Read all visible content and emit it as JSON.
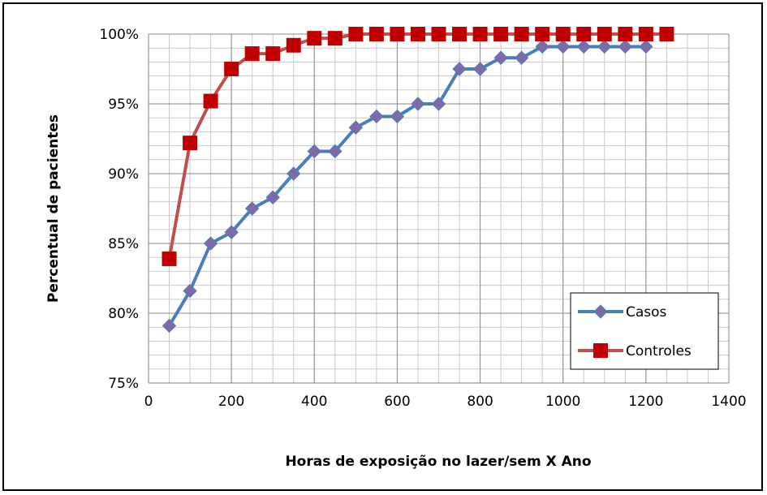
{
  "chart_data": {
    "type": "line",
    "xlabel": "Horas de exposição no lazer/sem X Ano",
    "ylabel": "Percentual de pacientes",
    "xlim": [
      0,
      1400
    ],
    "ylim": [
      75,
      100
    ],
    "x_ticks": [
      "0",
      "200",
      "400",
      "600",
      "800",
      "1000",
      "1200",
      "1400"
    ],
    "y_ticks": [
      "75%",
      "80%",
      "85%",
      "90%",
      "95%",
      "100%"
    ],
    "grid": true,
    "legend_position": "bottom-right",
    "series": [
      {
        "name": "Casos",
        "color": "#4a7ebb",
        "marker": "diamond",
        "marker_color": "#7f6aa8",
        "x": [
          50,
          100,
          150,
          200,
          250,
          300,
          350,
          400,
          450,
          500,
          550,
          600,
          650,
          700,
          750,
          800,
          850,
          900,
          950,
          1000,
          1050,
          1100,
          1150,
          1200
        ],
        "y": [
          79.1,
          81.6,
          85.0,
          85.8,
          87.5,
          88.3,
          90.0,
          91.6,
          91.6,
          93.3,
          94.1,
          94.1,
          95.0,
          95.0,
          97.5,
          97.5,
          98.3,
          98.3,
          99.1,
          99.1,
          99.1,
          99.1,
          99.1,
          99.1
        ]
      },
      {
        "name": "Controles",
        "color": "#c0504d",
        "marker": "square",
        "marker_color": "#c00000",
        "x": [
          50,
          100,
          150,
          200,
          250,
          300,
          350,
          400,
          450,
          500,
          550,
          600,
          650,
          700,
          750,
          800,
          850,
          900,
          950,
          1000,
          1050,
          1100,
          1150,
          1200,
          1250
        ],
        "y": [
          83.9,
          92.2,
          95.2,
          97.5,
          98.6,
          98.6,
          99.2,
          99.7,
          99.7,
          100,
          100,
          100,
          100,
          100,
          100,
          100,
          100,
          100,
          100,
          100,
          100,
          100,
          100,
          100,
          100
        ]
      }
    ]
  }
}
